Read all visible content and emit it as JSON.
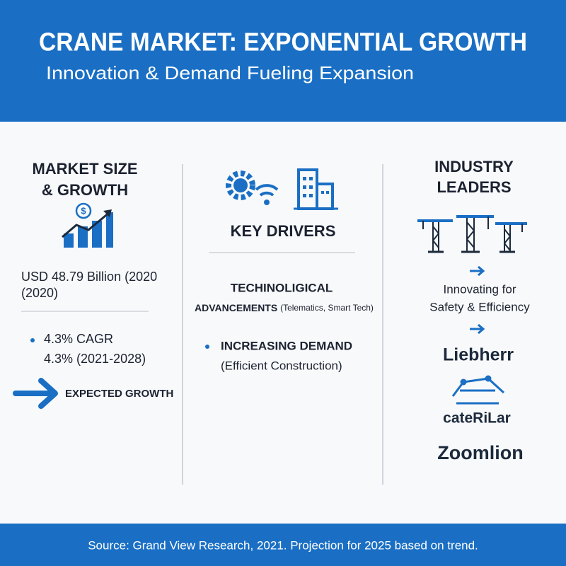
{
  "header": {
    "title": "CRANE MARKET: EXPONENTIAL GROWTH",
    "subtitle": "Innovation & Demand Fueling Expansion"
  },
  "market": {
    "title_lines": [
      "MARKET SIZE",
      "& GROWTH"
    ],
    "size_lines": [
      "USD 48.79 Billion (2020",
      "(2020)"
    ],
    "cagr_lines": [
      "4.3% CAGR",
      "4.3% (2021-2028)"
    ],
    "growth": "EXPECTED GROWTH"
  },
  "drivers": {
    "title": "KEY DRIVERS",
    "tech_line1": "TECHINOLIGICAL",
    "tech_line2": "ADVANCEMENTS",
    "tech_note": "(Telematics, Smart Tech)",
    "demand": "INCREASING DEMAND",
    "demand_note": "(Efficient Construction)"
  },
  "leaders": {
    "title_lines": [
      "INDUSTRY",
      "LEADERS"
    ],
    "innovating_lines": [
      "Innovating for",
      "Safety & Efficiency"
    ],
    "companies": [
      "Liebherr",
      "cateRiLar",
      "Zoomlion"
    ]
  },
  "footer": {
    "source": "Source: Grand View Research, 2021. Projection for 2025 based on trend."
  }
}
